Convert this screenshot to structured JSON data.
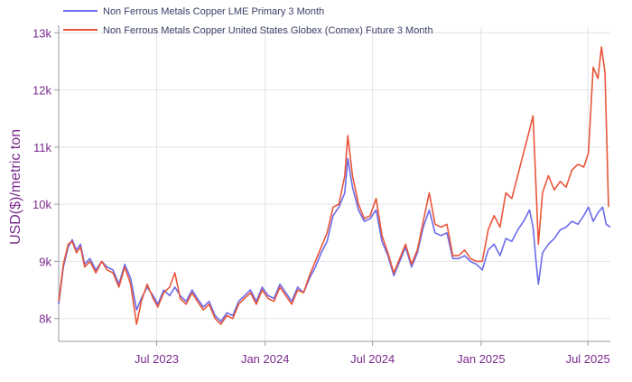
{
  "chart_data": {
    "type": "line",
    "title": "",
    "xlabel": "",
    "ylabel": "USD($)/metric ton",
    "x_range": [
      "2023-01-16",
      "2025-08-08"
    ],
    "ylim": [
      7600,
      13100
    ],
    "grid": true,
    "legend_position": "top-left",
    "x_ticks": [
      {
        "date": "2023-07-01",
        "label": "Jul 2023"
      },
      {
        "date": "2024-01-01",
        "label": "Jan 2024"
      },
      {
        "date": "2024-07-01",
        "label": "Jul 2024"
      },
      {
        "date": "2025-01-01",
        "label": "Jan 2025"
      },
      {
        "date": "2025-07-01",
        "label": "Jul 2025"
      }
    ],
    "y_ticks": [
      {
        "value": 8000,
        "label": "8k"
      },
      {
        "value": 9000,
        "label": "9k"
      },
      {
        "value": 10000,
        "label": "10k"
      },
      {
        "value": 11000,
        "label": "11k"
      },
      {
        "value": 12000,
        "label": "12k"
      },
      {
        "value": 13000,
        "label": "13k"
      }
    ],
    "series": [
      {
        "name": "Non Ferrous Metals Copper LME Primary 3 Month",
        "color": "#6b6bea",
        "points": [
          [
            "2023-01-16",
            8250
          ],
          [
            "2023-01-24",
            8900
          ],
          [
            "2023-02-01",
            9250
          ],
          [
            "2023-02-08",
            9380
          ],
          [
            "2023-02-15",
            9200
          ],
          [
            "2023-02-22",
            9300
          ],
          [
            "2023-03-01",
            8950
          ],
          [
            "2023-03-10",
            9050
          ],
          [
            "2023-03-20",
            8850
          ],
          [
            "2023-03-30",
            9000
          ],
          [
            "2023-04-08",
            8900
          ],
          [
            "2023-04-18",
            8850
          ],
          [
            "2023-04-28",
            8600
          ],
          [
            "2023-05-08",
            8950
          ],
          [
            "2023-05-18",
            8700
          ],
          [
            "2023-05-28",
            8150
          ],
          [
            "2023-06-05",
            8350
          ],
          [
            "2023-06-15",
            8550
          ],
          [
            "2023-06-25",
            8400
          ],
          [
            "2023-07-03",
            8250
          ],
          [
            "2023-07-13",
            8500
          ],
          [
            "2023-07-23",
            8400
          ],
          [
            "2023-08-01",
            8550
          ],
          [
            "2023-08-10",
            8400
          ],
          [
            "2023-08-20",
            8300
          ],
          [
            "2023-08-30",
            8500
          ],
          [
            "2023-09-08",
            8350
          ],
          [
            "2023-09-18",
            8200
          ],
          [
            "2023-09-28",
            8300
          ],
          [
            "2023-10-08",
            8050
          ],
          [
            "2023-10-18",
            7950
          ],
          [
            "2023-10-28",
            8100
          ],
          [
            "2023-11-07",
            8050
          ],
          [
            "2023-11-17",
            8300
          ],
          [
            "2023-11-27",
            8400
          ],
          [
            "2023-12-07",
            8500
          ],
          [
            "2023-12-17",
            8300
          ],
          [
            "2023-12-27",
            8550
          ],
          [
            "2024-01-06",
            8400
          ],
          [
            "2024-01-16",
            8350
          ],
          [
            "2024-01-26",
            8600
          ],
          [
            "2024-02-05",
            8450
          ],
          [
            "2024-02-15",
            8300
          ],
          [
            "2024-02-25",
            8550
          ],
          [
            "2024-03-06",
            8450
          ],
          [
            "2024-03-16",
            8700
          ],
          [
            "2024-03-26",
            8900
          ],
          [
            "2024-04-05",
            9150
          ],
          [
            "2024-04-15",
            9350
          ],
          [
            "2024-04-25",
            9800
          ],
          [
            "2024-05-05",
            9950
          ],
          [
            "2024-05-15",
            10200
          ],
          [
            "2024-05-20",
            10800
          ],
          [
            "2024-05-28",
            10300
          ],
          [
            "2024-06-07",
            9900
          ],
          [
            "2024-06-17",
            9700
          ],
          [
            "2024-06-27",
            9750
          ],
          [
            "2024-07-07",
            9900
          ],
          [
            "2024-07-17",
            9350
          ],
          [
            "2024-07-27",
            9100
          ],
          [
            "2024-08-06",
            8750
          ],
          [
            "2024-08-16",
            9000
          ],
          [
            "2024-08-26",
            9250
          ],
          [
            "2024-09-05",
            8900
          ],
          [
            "2024-09-15",
            9150
          ],
          [
            "2024-09-25",
            9600
          ],
          [
            "2024-10-05",
            9900
          ],
          [
            "2024-10-15",
            9500
          ],
          [
            "2024-10-25",
            9450
          ],
          [
            "2024-11-04",
            9500
          ],
          [
            "2024-11-14",
            9050
          ],
          [
            "2024-11-24",
            9050
          ],
          [
            "2024-12-04",
            9100
          ],
          [
            "2024-12-14",
            9000
          ],
          [
            "2024-12-24",
            8950
          ],
          [
            "2025-01-03",
            8850
          ],
          [
            "2025-01-13",
            9200
          ],
          [
            "2025-01-23",
            9300
          ],
          [
            "2025-02-02",
            9100
          ],
          [
            "2025-02-12",
            9400
          ],
          [
            "2025-02-22",
            9350
          ],
          [
            "2025-03-04",
            9550
          ],
          [
            "2025-03-14",
            9700
          ],
          [
            "2025-03-24",
            9900
          ],
          [
            "2025-03-30",
            9600
          ],
          [
            "2025-04-04",
            9000
          ],
          [
            "2025-04-08",
            8600
          ],
          [
            "2025-04-15",
            9150
          ],
          [
            "2025-04-25",
            9300
          ],
          [
            "2025-05-05",
            9400
          ],
          [
            "2025-05-15",
            9550
          ],
          [
            "2025-05-25",
            9600
          ],
          [
            "2025-06-04",
            9700
          ],
          [
            "2025-06-14",
            9650
          ],
          [
            "2025-06-24",
            9800
          ],
          [
            "2025-07-02",
            9950
          ],
          [
            "2025-07-10",
            9700
          ],
          [
            "2025-07-18",
            9850
          ],
          [
            "2025-07-26",
            9950
          ],
          [
            "2025-08-01",
            9650
          ],
          [
            "2025-08-08",
            9600
          ]
        ]
      },
      {
        "name": "Non Ferrous Metals Copper United States Globex (Comex) Future 3 Month",
        "color": "#e8563a",
        "points": [
          [
            "2023-01-16",
            8300
          ],
          [
            "2023-01-24",
            8950
          ],
          [
            "2023-02-01",
            9300
          ],
          [
            "2023-02-08",
            9350
          ],
          [
            "2023-02-15",
            9150
          ],
          [
            "2023-02-22",
            9250
          ],
          [
            "2023-03-01",
            8900
          ],
          [
            "2023-03-10",
            9000
          ],
          [
            "2023-03-20",
            8800
          ],
          [
            "2023-03-30",
            9000
          ],
          [
            "2023-04-08",
            8850
          ],
          [
            "2023-04-18",
            8800
          ],
          [
            "2023-04-28",
            8550
          ],
          [
            "2023-05-08",
            8900
          ],
          [
            "2023-05-18",
            8600
          ],
          [
            "2023-05-28",
            7900
          ],
          [
            "2023-06-05",
            8300
          ],
          [
            "2023-06-15",
            8600
          ],
          [
            "2023-06-25",
            8350
          ],
          [
            "2023-07-03",
            8200
          ],
          [
            "2023-07-13",
            8450
          ],
          [
            "2023-07-23",
            8550
          ],
          [
            "2023-08-01",
            8800
          ],
          [
            "2023-08-10",
            8350
          ],
          [
            "2023-08-20",
            8250
          ],
          [
            "2023-08-30",
            8450
          ],
          [
            "2023-09-08",
            8300
          ],
          [
            "2023-09-18",
            8150
          ],
          [
            "2023-09-28",
            8250
          ],
          [
            "2023-10-08",
            8000
          ],
          [
            "2023-10-18",
            7900
          ],
          [
            "2023-10-28",
            8050
          ],
          [
            "2023-11-07",
            8000
          ],
          [
            "2023-11-17",
            8250
          ],
          [
            "2023-11-27",
            8350
          ],
          [
            "2023-12-07",
            8450
          ],
          [
            "2023-12-17",
            8250
          ],
          [
            "2023-12-27",
            8500
          ],
          [
            "2024-01-06",
            8350
          ],
          [
            "2024-01-16",
            8300
          ],
          [
            "2024-01-26",
            8550
          ],
          [
            "2024-02-05",
            8400
          ],
          [
            "2024-02-15",
            8250
          ],
          [
            "2024-02-25",
            8500
          ],
          [
            "2024-03-06",
            8450
          ],
          [
            "2024-03-16",
            8750
          ],
          [
            "2024-03-26",
            9000
          ],
          [
            "2024-04-05",
            9250
          ],
          [
            "2024-04-15",
            9500
          ],
          [
            "2024-04-25",
            9950
          ],
          [
            "2024-05-05",
            10000
          ],
          [
            "2024-05-15",
            10500
          ],
          [
            "2024-05-20",
            11200
          ],
          [
            "2024-05-28",
            10500
          ],
          [
            "2024-06-07",
            10000
          ],
          [
            "2024-06-17",
            9750
          ],
          [
            "2024-06-27",
            9800
          ],
          [
            "2024-07-07",
            10100
          ],
          [
            "2024-07-17",
            9450
          ],
          [
            "2024-07-27",
            9150
          ],
          [
            "2024-08-06",
            8800
          ],
          [
            "2024-08-16",
            9050
          ],
          [
            "2024-08-26",
            9300
          ],
          [
            "2024-09-05",
            8950
          ],
          [
            "2024-09-15",
            9200
          ],
          [
            "2024-09-25",
            9700
          ],
          [
            "2024-10-05",
            10200
          ],
          [
            "2024-10-15",
            9650
          ],
          [
            "2024-10-25",
            9600
          ],
          [
            "2024-11-04",
            9650
          ],
          [
            "2024-11-14",
            9100
          ],
          [
            "2024-11-24",
            9100
          ],
          [
            "2024-12-04",
            9200
          ],
          [
            "2024-12-14",
            9050
          ],
          [
            "2024-12-24",
            9000
          ],
          [
            "2025-01-03",
            9000
          ],
          [
            "2025-01-13",
            9550
          ],
          [
            "2025-01-23",
            9800
          ],
          [
            "2025-02-02",
            9600
          ],
          [
            "2025-02-12",
            10200
          ],
          [
            "2025-02-22",
            10100
          ],
          [
            "2025-03-04",
            10500
          ],
          [
            "2025-03-14",
            10900
          ],
          [
            "2025-03-24",
            11300
          ],
          [
            "2025-03-30",
            11550
          ],
          [
            "2025-04-04",
            10300
          ],
          [
            "2025-04-08",
            9300
          ],
          [
            "2025-04-15",
            10200
          ],
          [
            "2025-04-25",
            10500
          ],
          [
            "2025-05-05",
            10250
          ],
          [
            "2025-05-15",
            10400
          ],
          [
            "2025-05-25",
            10300
          ],
          [
            "2025-06-04",
            10600
          ],
          [
            "2025-06-14",
            10700
          ],
          [
            "2025-06-24",
            10650
          ],
          [
            "2025-07-02",
            10900
          ],
          [
            "2025-07-10",
            12400
          ],
          [
            "2025-07-18",
            12200
          ],
          [
            "2025-07-24",
            12750
          ],
          [
            "2025-07-30",
            12300
          ],
          [
            "2025-08-05",
            9950
          ]
        ]
      }
    ]
  }
}
